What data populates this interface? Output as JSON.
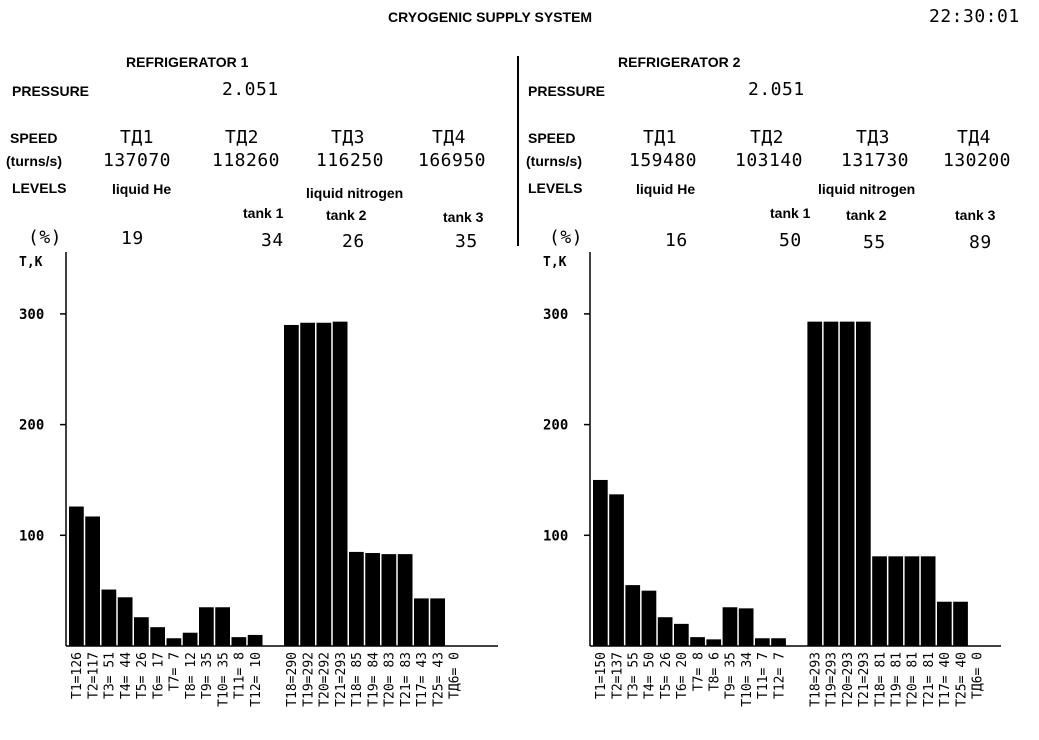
{
  "title": "CRYOGENIC SUPPLY SYSTEM",
  "clock": "22:30:01",
  "labels": {
    "pressure": "PRESSURE",
    "speed": "SPEED",
    "speed_unit": "(turns/s)",
    "levels": "LEVELS",
    "liquid_he": "liquid He",
    "liquid_nitrogen": "liquid nitrogen",
    "percent": "(%)",
    "tank1": "tank 1",
    "tank2": "tank 2",
    "tank3": "tank 3",
    "t_axis": "T,K"
  },
  "turbines": [
    "TД1",
    "TД2",
    "TД3",
    "TД4"
  ],
  "ref1": {
    "title": "REFRIGERATOR 1",
    "pressure": "2.051",
    "speeds": [
      "137070",
      "118260",
      "116250",
      "166950"
    ],
    "levels": [
      "19",
      "34",
      "26",
      "35"
    ]
  },
  "ref2": {
    "title": "REFRIGERATOR 2",
    "pressure": "2.051",
    "speeds": [
      "159480",
      "103140",
      "131730",
      "130200"
    ],
    "levels": [
      "16",
      "50",
      "55",
      "89"
    ]
  },
  "chart_data": [
    {
      "type": "bar",
      "ylabel": "T,K",
      "ylim": [
        0,
        340
      ],
      "yticks": [
        100,
        200,
        300
      ],
      "categories": [
        "T1=126",
        "T2=117",
        "T3= 51",
        "T4= 44",
        "T5= 26",
        "T6= 17",
        "T7= 7",
        "T8= 12",
        "T9= 35",
        "T10= 35",
        "T11= 8",
        "T12= 10",
        "T18=290",
        "T19=292",
        "T20=292",
        "T21=293",
        "T18= 85",
        "T19= 84",
        "T20= 83",
        "T21= 83",
        "T17= 43",
        "T25= 43",
        "TД6= 0"
      ],
      "values": [
        126,
        117,
        51,
        44,
        26,
        17,
        7,
        12,
        35,
        35,
        8,
        10,
        290,
        292,
        292,
        293,
        85,
        84,
        83,
        83,
        43,
        43,
        0
      ]
    },
    {
      "type": "bar",
      "ylabel": "T,K",
      "ylim": [
        0,
        340
      ],
      "yticks": [
        100,
        200,
        300
      ],
      "categories": [
        "T1=150",
        "T2=137",
        "T3= 55",
        "T4= 50",
        "T5= 26",
        "T6= 20",
        "T7= 8",
        "T8= 6",
        "T9= 35",
        "T10= 34",
        "T11= 7",
        "T12= 7",
        "T18=293",
        "T19=293",
        "T20=293",
        "T21=293",
        "T18= 81",
        "T19= 81",
        "T20= 81",
        "T21= 81",
        "T17= 40",
        "T25= 40",
        "TД6= 0"
      ],
      "values": [
        150,
        137,
        55,
        50,
        26,
        20,
        8,
        6,
        35,
        34,
        7,
        7,
        293,
        293,
        293,
        293,
        81,
        81,
        81,
        81,
        40,
        40,
        0
      ]
    }
  ]
}
